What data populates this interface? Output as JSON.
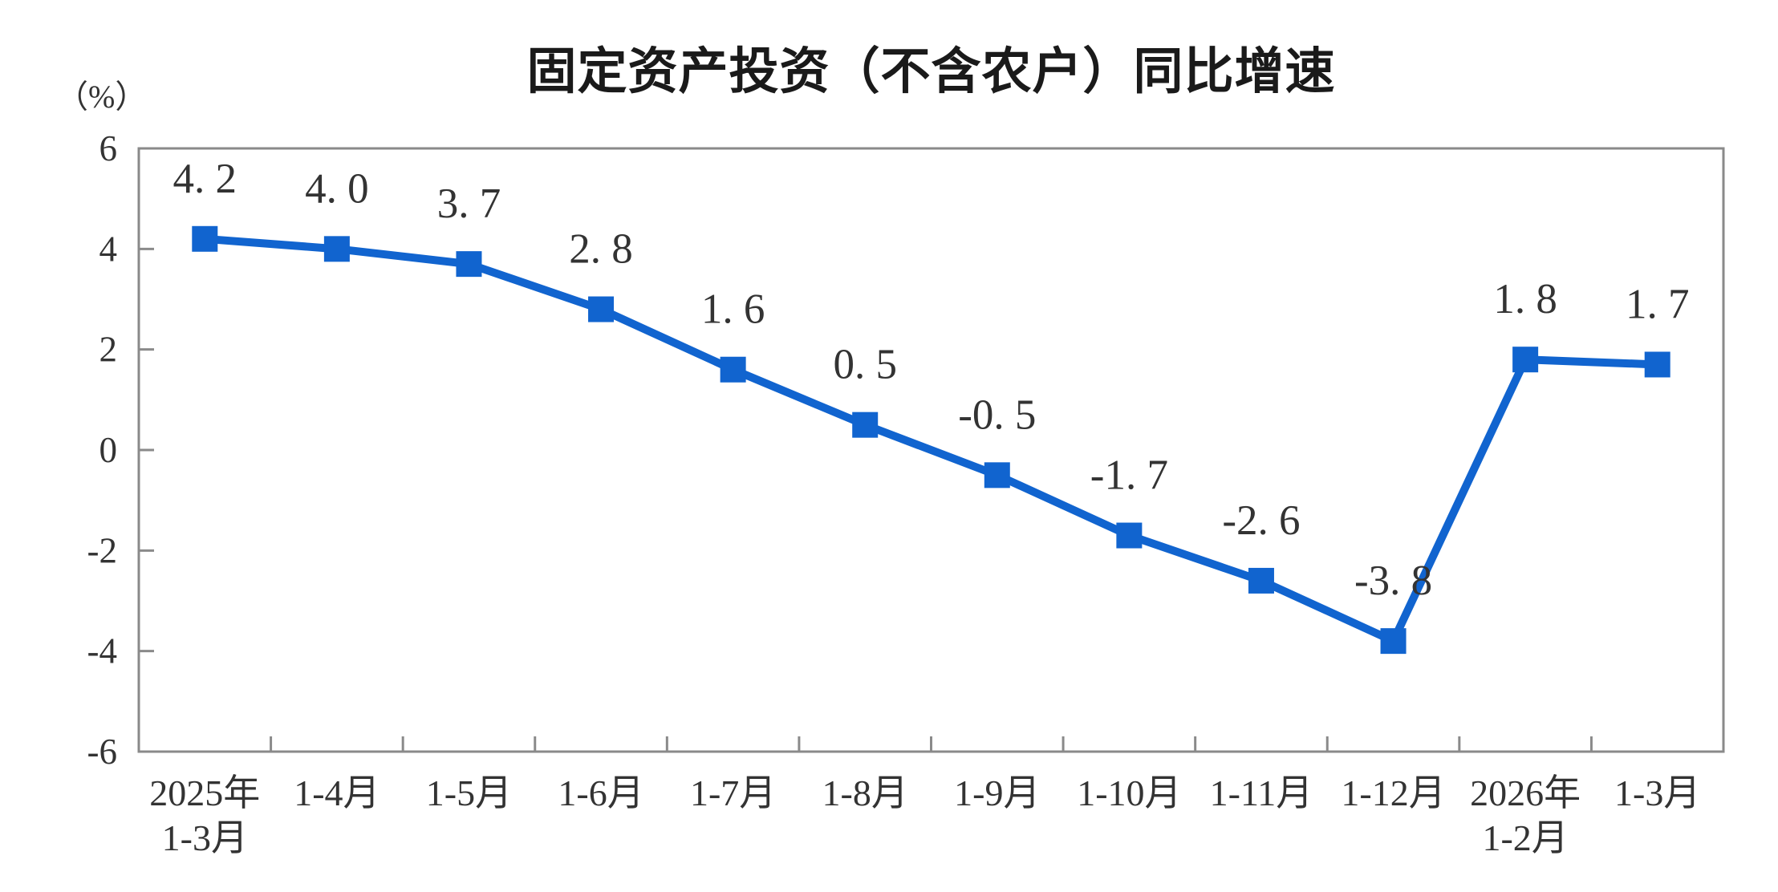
{
  "chart_data": {
    "type": "line",
    "title": "固定资产投资（不含农户）同比增速",
    "unit_label": "（%）",
    "series_name": "固定资产投资（不含农户）同比增速",
    "categories": [
      [
        "2025年",
        "1-3月"
      ],
      [
        "1-4月"
      ],
      [
        "1-5月"
      ],
      [
        "1-6月"
      ],
      [
        "1-7月"
      ],
      [
        "1-8月"
      ],
      [
        "1-9月"
      ],
      [
        "1-10月"
      ],
      [
        "1-11月"
      ],
      [
        "1-12月"
      ],
      [
        "2026年",
        "1-2月"
      ],
      [
        "1-3月"
      ]
    ],
    "values": [
      4.2,
      4.0,
      3.7,
      2.8,
      1.6,
      0.5,
      -0.5,
      -1.7,
      -2.6,
      -3.8,
      1.8,
      1.7
    ],
    "point_labels": [
      "4. 2",
      "4. 0",
      "3. 7",
      "2. 8",
      "1. 6",
      "0. 5",
      "-0. 5",
      "-1. 7",
      "-2. 6",
      "-3. 8",
      "1. 8",
      "1. 7"
    ],
    "xlabel": "",
    "ylabel": "（%）",
    "ylim": [
      -6,
      6
    ],
    "yticks": [
      6,
      4,
      2,
      0,
      -2,
      -4,
      -6
    ],
    "grid": false,
    "legend": "none",
    "marker": "square",
    "colors": {
      "line": "#1164cf",
      "marker": "#1164cf",
      "axis": "#8a8a8a",
      "tick_text": "#333333",
      "point_label_text": "#333333",
      "title_text": "#1a1a1a",
      "background": "#ffffff"
    }
  }
}
